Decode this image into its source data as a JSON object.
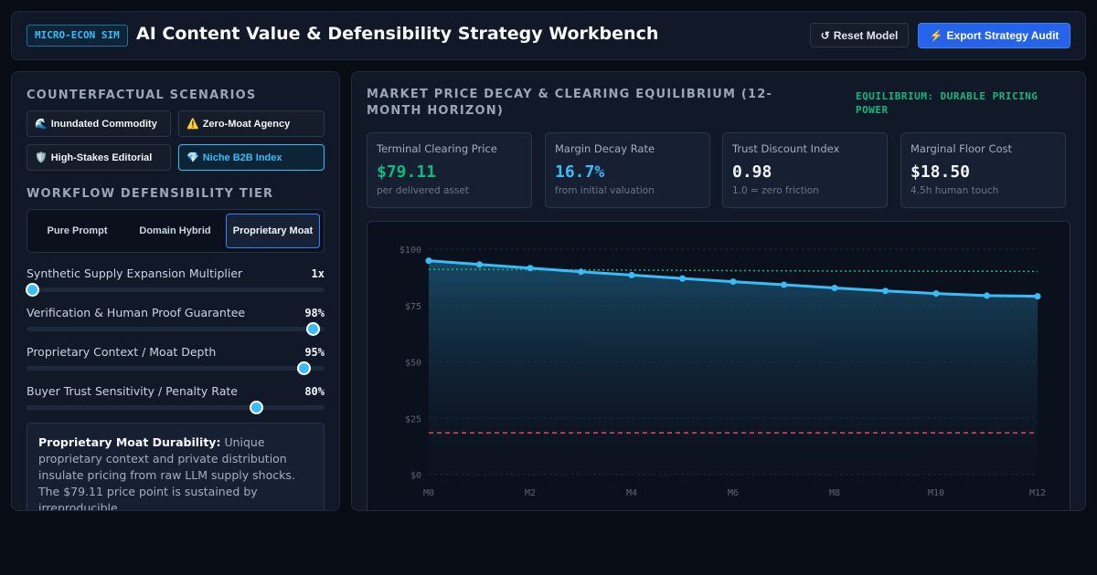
{
  "header": {
    "badge": "MICRO-ECON SIM",
    "title": "AI Content Value & Defensibility Strategy Workbench",
    "reset_icon": "↺",
    "reset_label": "Reset Model",
    "export_icon": "⚡",
    "export_label": "Export Strategy Audit"
  },
  "scenarios": {
    "label": "COUNTERFACTUAL SCENARIOS",
    "items": [
      {
        "icon": "🌊",
        "label": "Inundated Commodity"
      },
      {
        "icon": "⚠️",
        "label": "Zero-Moat Agency"
      },
      {
        "icon": "🛡️",
        "label": "High-Stakes Editorial"
      },
      {
        "icon": "💎",
        "label": "Niche B2B Index"
      }
    ],
    "active": "Niche B2B Index"
  },
  "tiers": {
    "label": "WORKFLOW DEFENSIBILITY TIER",
    "options": [
      "Pure Prompt",
      "Domain Hybrid",
      "Proprietary Moat"
    ],
    "active": "Proprietary Moat"
  },
  "sliders": [
    {
      "label": "Synthetic Supply Expansion Multiplier",
      "value": "1x",
      "fraction": 0.0
    },
    {
      "label": "Verification & Human Proof Guarantee",
      "value": "98%",
      "fraction": 0.96
    },
    {
      "label": "Proprietary Context / Moat Depth",
      "value": "95%",
      "fraction": 0.93
    },
    {
      "label": "Buyer Trust Sensitivity / Penalty Rate",
      "value": "80%",
      "fraction": 0.77
    }
  ],
  "insight": {
    "heading": "Proprietary Moat Durability:",
    "body": "Unique proprietary context and private distribution insulate pricing from raw LLM supply shocks. The $79.11 price point is sustained by irreproducible"
  },
  "chart_panel": {
    "title": "MARKET PRICE DECAY & CLEARING EQUILIBRIUM (12-MONTH HORIZON)",
    "status": "EQUILIBRIUM: DURABLE PRICING POWER",
    "status_color": "#10b981"
  },
  "metrics": [
    {
      "label": "Terminal Clearing Price",
      "value": "$79.11",
      "sub": "per delivered asset",
      "color": "#10b981"
    },
    {
      "label": "Margin Decay Rate",
      "value": "16.7%",
      "sub": "from initial valuation",
      "color": "#38bdf8"
    },
    {
      "label": "Trust Discount Index",
      "value": "0.98",
      "sub": "1.0 = zero friction",
      "color": "#f1f5f9"
    },
    {
      "label": "Marginal Floor Cost",
      "value": "$18.50",
      "sub": "4.5h human touch",
      "color": "#f1f5f9"
    }
  ],
  "chart_data": {
    "type": "line",
    "x": [
      "M0",
      "M1",
      "M2",
      "M3",
      "M4",
      "M5",
      "M6",
      "M7",
      "M8",
      "M9",
      "M10",
      "M11",
      "M12"
    ],
    "x_tick_labels": [
      "M0",
      "M2",
      "M4",
      "M6",
      "M8",
      "M10",
      "M12"
    ],
    "y_tick_labels": [
      "$100",
      "$75",
      "$50",
      "$25",
      "$0"
    ],
    "ylim": [
      0,
      100
    ],
    "series": [
      {
        "values": [
          94.9,
          93.2,
          91.6,
          90.0,
          88.5,
          87.0,
          85.6,
          84.2,
          82.8,
          81.5,
          80.3,
          79.4,
          79.11
        ],
        "color": "#38bdf8",
        "style": "solid-area"
      },
      {
        "values": [
          91.0,
          91.0,
          90.9,
          90.8,
          90.7,
          90.6,
          90.5,
          90.4,
          90.3,
          90.3,
          90.2,
          90.2,
          90.1
        ],
        "color": "#10b981",
        "style": "dotted"
      },
      {
        "values": [
          18.5,
          18.5,
          18.5,
          18.5,
          18.5,
          18.5,
          18.5,
          18.5,
          18.5,
          18.5,
          18.5,
          18.5,
          18.5
        ],
        "color": "#f43f5e",
        "style": "dashed"
      }
    ],
    "grid": true
  }
}
